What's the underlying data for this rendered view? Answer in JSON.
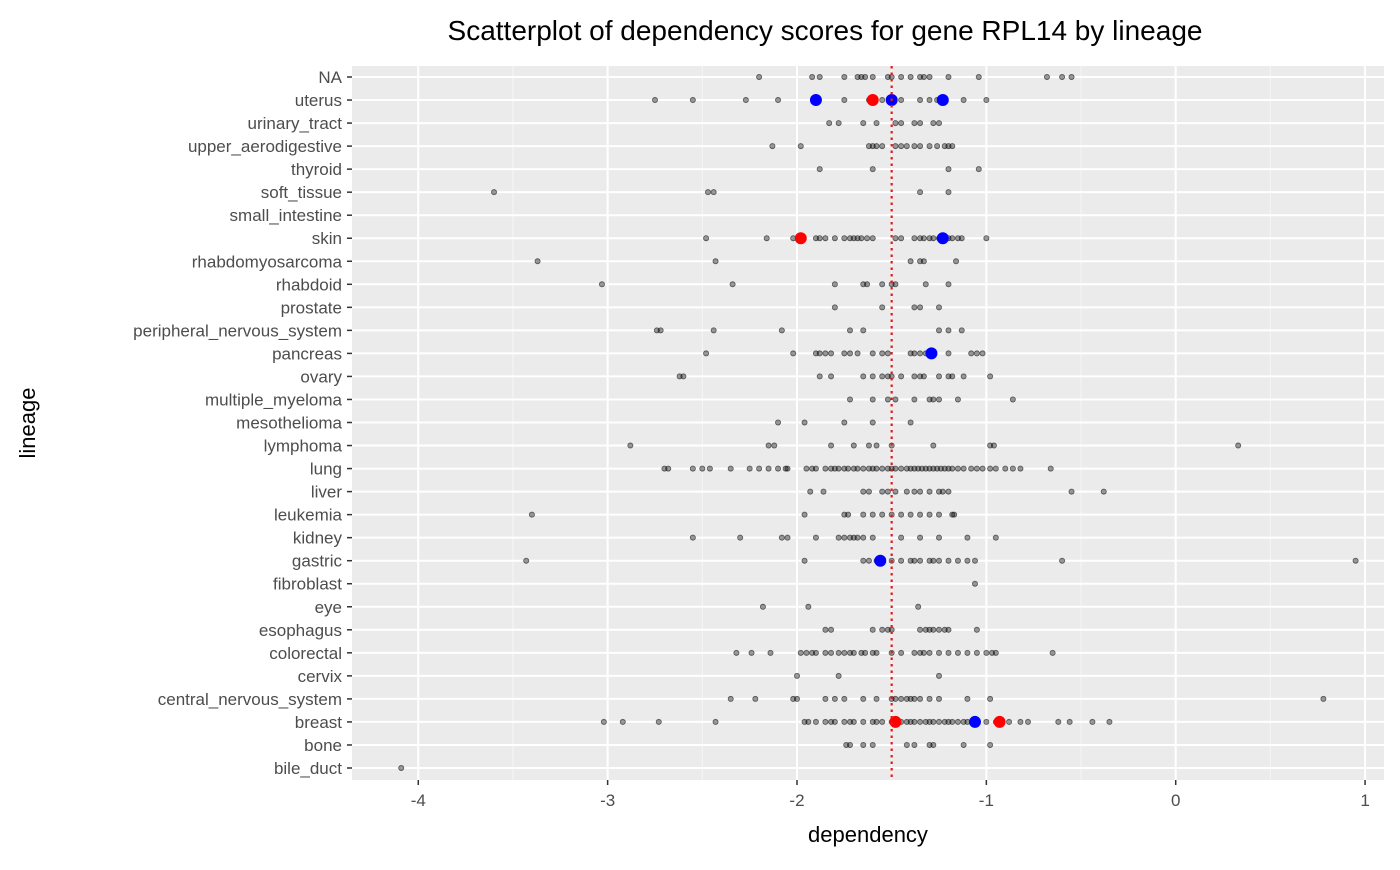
{
  "chart_data": {
    "type": "scatter",
    "title": "Scatterplot of dependency scores for gene RPL14 by lineage",
    "xlabel": "dependency",
    "ylabel": "lineage",
    "xlim": [
      -4.35,
      1.1
    ],
    "x_ticks": [
      -4,
      -3,
      -2,
      -1,
      0,
      1
    ],
    "x_tick_labels": [
      "-4",
      "-3",
      "-2",
      "-1",
      "0",
      "1"
    ],
    "grid": true,
    "legend": "none",
    "reference_line": {
      "x": -1.5,
      "style": "dotted",
      "color": "#e41a1c"
    },
    "colors": {
      "background": "#ebebeb",
      "grid": "#ffffff",
      "points": "#000000",
      "red": "#ff0000",
      "blue": "#0000ff"
    },
    "categories": [
      "bile_duct",
      "bone",
      "breast",
      "central_nervous_system",
      "cervix",
      "colorectal",
      "esophagus",
      "eye",
      "fibroblast",
      "gastric",
      "kidney",
      "leukemia",
      "liver",
      "lung",
      "lymphoma",
      "mesothelioma",
      "multiple_myeloma",
      "ovary",
      "pancreas",
      "peripheral_nervous_system",
      "prostate",
      "rhabdoid",
      "rhabdomyosarcoma",
      "skin",
      "small_intestine",
      "soft_tissue",
      "thyroid",
      "upper_aerodigestive",
      "urinary_tract",
      "uterus",
      "NA"
    ],
    "series": [
      {
        "color": "#000000",
        "points": [
          {
            "lineage": "NA",
            "x": [
              -2.2,
              -1.92,
              -1.88,
              -1.75,
              -1.68,
              -1.66,
              -1.64,
              -1.6,
              -1.52,
              -1.5,
              -1.45,
              -1.4,
              -1.35,
              -1.33,
              -1.3,
              -1.2,
              -1.04,
              -0.68,
              -0.6,
              -0.55
            ]
          },
          {
            "lineage": "uterus",
            "x": [
              -2.75,
              -2.55,
              -2.27,
              -2.1,
              -1.75,
              -1.62,
              -1.55,
              -1.45,
              -1.35,
              -1.3,
              -1.26,
              -1.12,
              -1.0
            ]
          },
          {
            "lineage": "urinary_tract",
            "x": [
              -1.83,
              -1.78,
              -1.65,
              -1.58,
              -1.48,
              -1.45,
              -1.38,
              -1.35,
              -1.28,
              -1.25
            ]
          },
          {
            "lineage": "upper_aerodigestive",
            "x": [
              -2.13,
              -1.98,
              -1.62,
              -1.6,
              -1.58,
              -1.55,
              -1.48,
              -1.45,
              -1.42,
              -1.38,
              -1.35,
              -1.3,
              -1.26,
              -1.22,
              -1.2,
              -1.18
            ]
          },
          {
            "lineage": "thyroid",
            "x": [
              -1.88,
              -1.6,
              -1.2,
              -1.04
            ]
          },
          {
            "lineage": "soft_tissue",
            "x": [
              -3.6,
              -2.47,
              -2.44,
              -1.35,
              -1.2
            ]
          },
          {
            "lineage": "skin",
            "x": [
              -2.48,
              -2.16,
              -2.02,
              -1.9,
              -1.88,
              -1.85,
              -1.8,
              -1.75,
              -1.72,
              -1.7,
              -1.68,
              -1.66,
              -1.63,
              -1.6,
              -1.48,
              -1.45,
              -1.38,
              -1.35,
              -1.33,
              -1.3,
              -1.28,
              -1.25,
              -1.2,
              -1.18,
              -1.15,
              -1.13,
              -1.0
            ]
          },
          {
            "lineage": "rhabdomyosarcoma",
            "x": [
              -3.37,
              -2.43,
              -1.4,
              -1.35,
              -1.33,
              -1.16
            ]
          },
          {
            "lineage": "rhabdoid",
            "x": [
              -3.03,
              -2.34,
              -1.8,
              -1.65,
              -1.63,
              -1.55,
              -1.5,
              -1.48,
              -1.32,
              -1.2
            ]
          },
          {
            "lineage": "prostate",
            "x": [
              -1.8,
              -1.55,
              -1.38,
              -1.35,
              -1.25
            ]
          },
          {
            "lineage": "peripheral_nervous_system",
            "x": [
              -2.74,
              -2.72,
              -2.44,
              -2.08,
              -1.72,
              -1.65,
              -1.25,
              -1.2,
              -1.13
            ]
          },
          {
            "lineage": "pancreas",
            "x": [
              -2.48,
              -2.02,
              -1.9,
              -1.88,
              -1.85,
              -1.82,
              -1.75,
              -1.72,
              -1.68,
              -1.6,
              -1.55,
              -1.52,
              -1.4,
              -1.38,
              -1.35,
              -1.32,
              -1.2,
              -1.08,
              -1.05,
              -1.02
            ]
          },
          {
            "lineage": "ovary",
            "x": [
              -2.62,
              -2.6,
              -1.88,
              -1.82,
              -1.65,
              -1.6,
              -1.55,
              -1.52,
              -1.5,
              -1.45,
              -1.38,
              -1.35,
              -1.33,
              -1.25,
              -1.2,
              -1.18,
              -1.12,
              -0.98
            ]
          },
          {
            "lineage": "multiple_myeloma",
            "x": [
              -1.72,
              -1.6,
              -1.52,
              -1.48,
              -1.38,
              -1.3,
              -1.28,
              -1.25,
              -1.15,
              -0.86
            ]
          },
          {
            "lineage": "mesothelioma",
            "x": [
              -2.1,
              -1.96,
              -1.75,
              -1.6,
              -1.4
            ]
          },
          {
            "lineage": "lymphoma",
            "x": [
              -2.88,
              -2.15,
              -2.12,
              -1.82,
              -1.7,
              -1.62,
              -1.58,
              -1.5,
              -1.28,
              -0.98,
              -0.96,
              0.33
            ]
          },
          {
            "lineage": "lung",
            "x": [
              -2.7,
              -2.68,
              -2.55,
              -2.5,
              -2.46,
              -2.35,
              -2.25,
              -2.2,
              -2.15,
              -2.1,
              -2.06,
              -2.05,
              -1.95,
              -1.92,
              -1.9,
              -1.85,
              -1.82,
              -1.8,
              -1.78,
              -1.75,
              -1.73,
              -1.7,
              -1.68,
              -1.65,
              -1.62,
              -1.6,
              -1.58,
              -1.55,
              -1.52,
              -1.5,
              -1.48,
              -1.45,
              -1.42,
              -1.4,
              -1.38,
              -1.36,
              -1.34,
              -1.32,
              -1.3,
              -1.28,
              -1.26,
              -1.24,
              -1.22,
              -1.2,
              -1.18,
              -1.15,
              -1.12,
              -1.08,
              -1.05,
              -1.02,
              -0.98,
              -0.95,
              -0.9,
              -0.86,
              -0.82,
              -0.66
            ]
          },
          {
            "lineage": "liver",
            "x": [
              -1.93,
              -1.86,
              -1.65,
              -1.62,
              -1.55,
              -1.52,
              -1.48,
              -1.42,
              -1.38,
              -1.35,
              -1.3,
              -1.25,
              -1.23,
              -1.2,
              -0.55,
              -0.38
            ]
          },
          {
            "lineage": "leukemia",
            "x": [
              -3.4,
              -1.96,
              -1.75,
              -1.73,
              -1.65,
              -1.6,
              -1.55,
              -1.5,
              -1.45,
              -1.4,
              -1.35,
              -1.3,
              -1.25,
              -1.18,
              -1.17
            ]
          },
          {
            "lineage": "kidney",
            "x": [
              -2.55,
              -2.3,
              -2.08,
              -2.05,
              -1.9,
              -1.78,
              -1.75,
              -1.72,
              -1.7,
              -1.68,
              -1.65,
              -1.6,
              -1.45,
              -1.35,
              -1.25,
              -1.1,
              -0.95
            ]
          },
          {
            "lineage": "gastric",
            "x": [
              -3.43,
              -1.96,
              -1.65,
              -1.62,
              -1.58,
              -1.5,
              -1.45,
              -1.4,
              -1.38,
              -1.35,
              -1.3,
              -1.28,
              -1.25,
              -1.2,
              -1.15,
              -1.1,
              -1.06,
              -0.6,
              0.95
            ]
          },
          {
            "lineage": "fibroblast",
            "x": [
              -1.06
            ]
          },
          {
            "lineage": "eye",
            "x": [
              -2.18,
              -1.94,
              -1.36
            ]
          },
          {
            "lineage": "esophagus",
            "x": [
              -1.85,
              -1.82,
              -1.6,
              -1.55,
              -1.52,
              -1.5,
              -1.35,
              -1.32,
              -1.3,
              -1.28,
              -1.25,
              -1.22,
              -1.2,
              -1.05
            ]
          },
          {
            "lineage": "colorectal",
            "x": [
              -2.32,
              -2.24,
              -2.14,
              -1.98,
              -1.95,
              -1.92,
              -1.9,
              -1.85,
              -1.82,
              -1.78,
              -1.75,
              -1.72,
              -1.7,
              -1.66,
              -1.64,
              -1.6,
              -1.58,
              -1.5,
              -1.45,
              -1.38,
              -1.35,
              -1.33,
              -1.3,
              -1.25,
              -1.2,
              -1.15,
              -1.1,
              -1.05,
              -1.0,
              -0.97,
              -0.95,
              -0.65
            ]
          },
          {
            "lineage": "cervix",
            "x": [
              -2.0,
              -1.78,
              -1.25
            ]
          },
          {
            "lineage": "central_nervous_system",
            "x": [
              -2.35,
              -2.22,
              -2.02,
              -2.0,
              -1.85,
              -1.8,
              -1.75,
              -1.65,
              -1.58,
              -1.5,
              -1.48,
              -1.45,
              -1.42,
              -1.4,
              -1.38,
              -1.35,
              -1.3,
              -1.25,
              -1.1,
              -0.98,
              0.78
            ]
          },
          {
            "lineage": "breast",
            "x": [
              -3.02,
              -2.92,
              -2.73,
              -2.43,
              -1.96,
              -1.94,
              -1.9,
              -1.85,
              -1.82,
              -1.8,
              -1.75,
              -1.72,
              -1.7,
              -1.65,
              -1.6,
              -1.58,
              -1.55,
              -1.5,
              -1.45,
              -1.42,
              -1.4,
              -1.38,
              -1.35,
              -1.32,
              -1.3,
              -1.28,
              -1.25,
              -1.22,
              -1.2,
              -1.18,
              -1.15,
              -1.12,
              -1.1,
              -1.05,
              -1.0,
              -0.95,
              -0.88,
              -0.82,
              -0.78,
              -0.62,
              -0.56,
              -0.44,
              -0.35
            ]
          },
          {
            "lineage": "bone",
            "x": [
              -1.74,
              -1.72,
              -1.65,
              -1.6,
              -1.42,
              -1.38,
              -1.3,
              -1.28,
              -1.12,
              -0.98
            ]
          },
          {
            "lineage": "bile_duct",
            "x": [
              -4.09
            ]
          }
        ]
      },
      {
        "color": "#ff0000",
        "points": [
          {
            "lineage": "uterus",
            "x": [
              -1.6
            ]
          },
          {
            "lineage": "skin",
            "x": [
              -1.98
            ]
          },
          {
            "lineage": "breast",
            "x": [
              -1.48,
              -0.93
            ]
          }
        ]
      },
      {
        "color": "#0000ff",
        "points": [
          {
            "lineage": "uterus",
            "x": [
              -1.9,
              -1.5,
              -1.23
            ]
          },
          {
            "lineage": "skin",
            "x": [
              -1.23
            ]
          },
          {
            "lineage": "pancreas",
            "x": [
              -1.29
            ]
          },
          {
            "lineage": "gastric",
            "x": [
              -1.56
            ]
          },
          {
            "lineage": "breast",
            "x": [
              -1.06
            ]
          }
        ]
      }
    ]
  }
}
